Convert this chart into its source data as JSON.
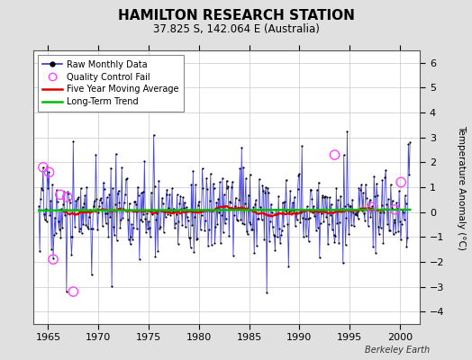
{
  "title": "HAMILTON RESEARCH STATION",
  "subtitle": "37.825 S, 142.064 E (Australia)",
  "ylabel": "Temperature Anomaly (°C)",
  "watermark": "Berkeley Earth",
  "xlim": [
    1963.5,
    2002.0
  ],
  "ylim": [
    -4.5,
    6.5
  ],
  "yticks": [
    -4,
    -3,
    -2,
    -1,
    0,
    1,
    2,
    3,
    4,
    5,
    6
  ],
  "xticks": [
    1965,
    1970,
    1975,
    1980,
    1985,
    1990,
    1995,
    2000
  ],
  "bg_color": "#e0e0e0",
  "plot_bg_color": "#ffffff",
  "raw_line_color": "#3333cc",
  "raw_dot_color": "#000000",
  "moving_avg_color": "#dd0000",
  "trend_color": "#00bb00",
  "qc_fail_color": "#ff44ff",
  "title_fontsize": 11,
  "subtitle_fontsize": 8.5,
  "tick_fontsize": 8,
  "ylabel_fontsize": 7.5,
  "legend_fontsize": 7,
  "start_year": 1964.083,
  "months_per_point": 0.08333,
  "n_months": 444,
  "long_term_slope": 0.0008,
  "long_term_intercept": 0.08,
  "qc_fail_times": [
    1964.5,
    1965.5,
    1966.2,
    1966.9,
    1967.5,
    1965.1,
    1993.5,
    1997.2,
    1999.5,
    2000.1
  ],
  "qc_fail_vals": [
    1.8,
    -1.9,
    0.7,
    0.6,
    -3.2,
    1.6,
    2.3,
    0.2,
    0.1,
    1.2
  ]
}
